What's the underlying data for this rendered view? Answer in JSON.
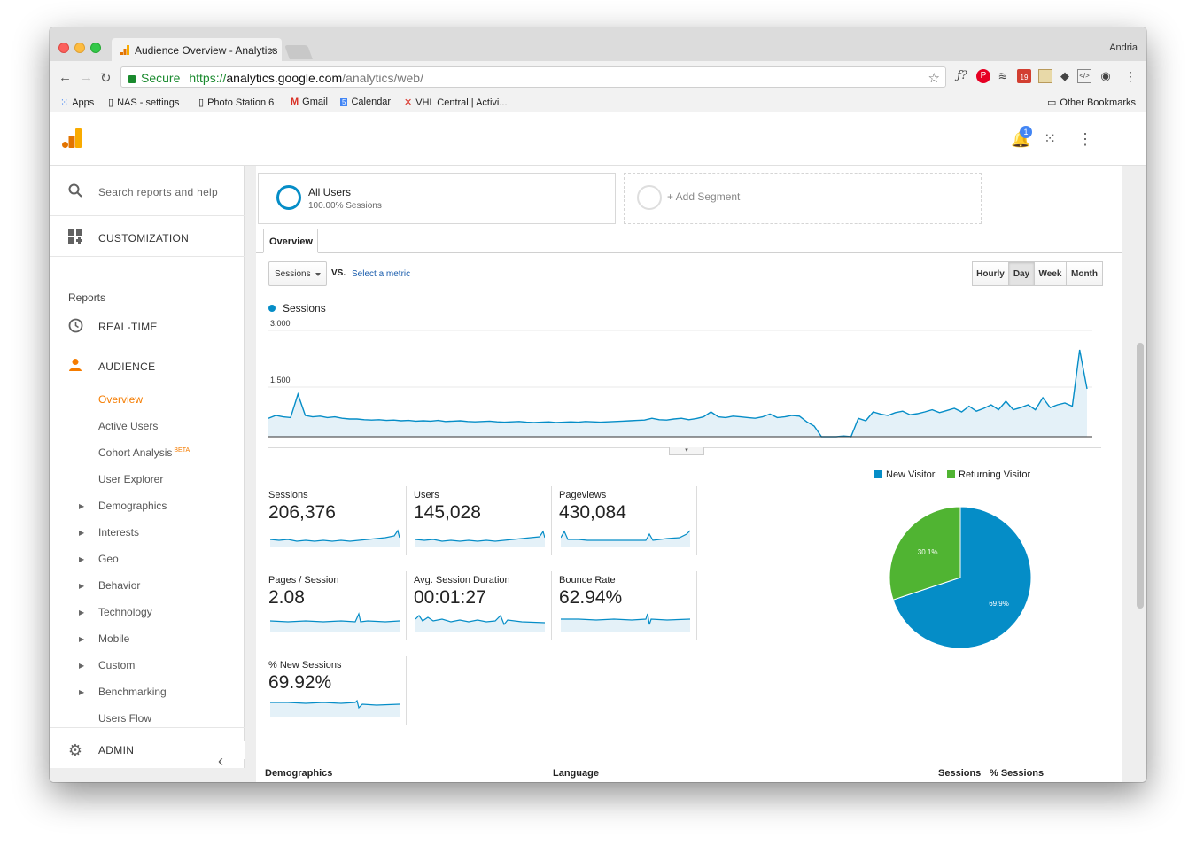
{
  "browser": {
    "tab_title": "Audience Overview - Analytics",
    "tab_close": "×",
    "profile": "Andria",
    "secure_label": "Secure",
    "url_scheme": "https://",
    "url_host": "analytics.google.com",
    "url_path": "/analytics/web/",
    "bookmarks": [
      "Apps",
      "NAS - settings",
      "Photo Station 6",
      "Gmail",
      "Calendar",
      "VHL Central | Activi..."
    ],
    "other_bookmarks": "Other Bookmarks",
    "calendar_badge": "19"
  },
  "header": {
    "notification_count": "1"
  },
  "sidebar": {
    "search_placeholder": "Search reports and help",
    "customization": "CUSTOMIZATION",
    "reports_heading": "Reports",
    "realtime": "REAL-TIME",
    "audience": "AUDIENCE",
    "audience_items": [
      "Overview",
      "Active Users",
      "Cohort Analysis",
      "User Explorer",
      "Demographics",
      "Interests",
      "Geo",
      "Behavior",
      "Technology",
      "Mobile",
      "Custom",
      "Benchmarking",
      "Users Flow"
    ],
    "beta_label": "BETA",
    "admin": "ADMIN",
    "collapse_glyph": "‹"
  },
  "segments": {
    "all_users_title": "All Users",
    "all_users_sub": "100.00% Sessions",
    "add_segment": "+ Add Segment"
  },
  "overview_tab": "Overview",
  "controls": {
    "metric": "Sessions",
    "vs": "VS.",
    "select_metric": "Select a metric",
    "granularity": [
      "Hourly",
      "Day",
      "Week",
      "Month"
    ],
    "selected_granularity": "Day"
  },
  "chart_data": {
    "type": "line",
    "series": [
      {
        "name": "Sessions",
        "values": [
          520,
          600,
          560,
          540,
          1200,
          600,
          560,
          580,
          540,
          560,
          520,
          500,
          500,
          480,
          470,
          480,
          460,
          470,
          450,
          460,
          440,
          450,
          440,
          460,
          430,
          440,
          450,
          430,
          420,
          430,
          440,
          420,
          410,
          420,
          430,
          410,
          400,
          410,
          420,
          400,
          410,
          420,
          410,
          430,
          420,
          410,
          420,
          430,
          440,
          450,
          460,
          470,
          520,
          480,
          470,
          500,
          520,
          480,
          510,
          560,
          700,
          560,
          540,
          580,
          560,
          540,
          520,
          560,
          640,
          540,
          560,
          600,
          580,
          420,
          300,
          0,
          0,
          0,
          20,
          0,
          520,
          450,
          700,
          640,
          600,
          680,
          720,
          620,
          650,
          700,
          760,
          680,
          740,
          800,
          700,
          860,
          720,
          800,
          900,
          760,
          1000,
          760,
          820,
          900,
          760,
          1100,
          820,
          900,
          950,
          860,
          2450,
          1350
        ]
      }
    ],
    "ytick_labels": [
      "3,000",
      "1,500"
    ],
    "ylim": [
      0,
      3000
    ],
    "legend": "top-left",
    "grid": true
  },
  "metrics": [
    {
      "label": "Sessions",
      "value": "206,376"
    },
    {
      "label": "Users",
      "value": "145,028"
    },
    {
      "label": "Pageviews",
      "value": "430,084"
    },
    {
      "label": "Pages / Session",
      "value": "2.08"
    },
    {
      "label": "Avg. Session Duration",
      "value": "00:01:27"
    },
    {
      "label": "Bounce Rate",
      "value": "62.94%"
    },
    {
      "label": "% New Sessions",
      "value": "69.92%"
    }
  ],
  "pie": {
    "type": "pie",
    "slices": [
      {
        "name": "New Visitor",
        "value": 69.9,
        "label": "69.9%",
        "color": "#058dc7"
      },
      {
        "name": "Returning Visitor",
        "value": 30.1,
        "label": "30.1%",
        "color": "#50b432"
      }
    ]
  },
  "bottom_table": {
    "headers": [
      "Demographics",
      "Language",
      "Sessions",
      "% Sessions"
    ]
  },
  "colors": {
    "accent_orange": "#f57c00",
    "chart_blue": "#058dc7",
    "chart_green": "#50b432"
  }
}
